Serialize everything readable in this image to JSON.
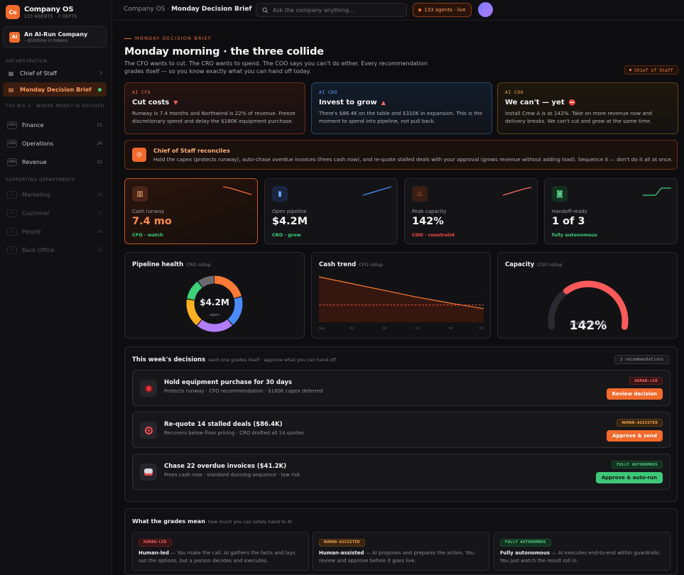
{
  "brand": {
    "logo_text": "Co",
    "name": "Company OS",
    "subtitle": "133 AGENTS · 7 DEPTS"
  },
  "company": {
    "logo_text": "AI",
    "name": "An AI-Run Company",
    "subtitle": "~$500/mo in tokens"
  },
  "sidebar": {
    "section_orchestration": "ORCHESTRATION",
    "chief_of_staff": {
      "label": "Chief of Staff",
      "count": "3"
    },
    "monday_brief": {
      "label": "Monday Decision Brief"
    },
    "section_big3": "THE BIG 3 · WHERE MONEY IS DECIDED",
    "big3": [
      {
        "tag": "CFO",
        "label": "Finance",
        "count": "21"
      },
      {
        "tag": "COO",
        "label": "Operations",
        "count": "24"
      },
      {
        "tag": "CRO",
        "label": "Revenue",
        "count": "22"
      }
    ],
    "section_support": "SUPPORTING DEPARTMENTS",
    "support": [
      {
        "tag": "S",
        "label": "Marketing",
        "count": "18"
      },
      {
        "tag": "S",
        "label": "Customer",
        "count": "17"
      },
      {
        "tag": "S",
        "label": "People",
        "count": "16"
      },
      {
        "tag": "S",
        "label": "Back Office",
        "count": "15"
      }
    ]
  },
  "topbar": {
    "crumb_root": "Company OS · ",
    "crumb_current": "Monday Decision Brief",
    "search_placeholder": "Ask the company anything...",
    "live_label": "133 agents · live"
  },
  "header": {
    "eyebrow": "MONDAY DECISION BRIEF",
    "title": "Monday morning · the three collide",
    "intro": "The CFO wants to cut. The CRO wants to spend. The COO says you can't do either. Every recommendation grades itself — so you know exactly what you can hand off today.",
    "cos_tag": "Chief of Staff"
  },
  "roles": [
    {
      "tag": "AI CFO",
      "title": "Cut costs",
      "mark": "▼",
      "body": "Runway is 7.4 months and Northwind is 22% of revenue. Freeze discretionary spend and delay the $180K equipment purchase."
    },
    {
      "tag": "AI CRO",
      "title": "Invest to grow",
      "mark": "▲",
      "body": "There's $86.4K on the table and $310K in expansion. This is the moment to spend into pipeline, not pull back."
    },
    {
      "tag": "AI COO",
      "title": "We can't — yet",
      "mark": "⛔",
      "body": "Install Crew A is at 142%. Take on more revenue now and delivery breaks. We can't cut and grow at the same time."
    }
  ],
  "reconcile": {
    "title": "Chief of Staff reconciles",
    "body": "Hold the capex (protects runway), auto-chase overdue invoices (frees cash now), and re-quote stalled deals with your approval (grows revenue without adding load). Sequence it — don't do it all at once."
  },
  "kpis": [
    {
      "icon": "bank-icon",
      "label": "Cash runway",
      "value": "7.4 mo",
      "sub": "CFO · watch",
      "color": "#3ed17a"
    },
    {
      "icon": "chart-icon",
      "label": "Open pipeline",
      "value": "$4.2M",
      "sub": "CRO · grow",
      "color": "#3ed17a"
    },
    {
      "icon": "flame-icon",
      "label": "Peak capacity",
      "value": "142%",
      "sub": "COO · constraint",
      "color": "#ff4a4a"
    },
    {
      "icon": "robot-icon",
      "label": "Handoff-ready",
      "value": "1 of 3",
      "sub": "fully autonomous",
      "color": "#3ed17a"
    }
  ],
  "pipeline": {
    "title": "Pipeline health",
    "subtitle": "CRO rollup",
    "center_value": "$4.2M",
    "center_label": "open",
    "segments": [
      {
        "value": 21,
        "color": "#ff7a35"
      },
      {
        "value": 18,
        "color": "#4a8cff"
      },
      {
        "value": 22,
        "color": "#b27cff"
      },
      {
        "value": 17,
        "color": "#ffb020"
      },
      {
        "value": 12,
        "color": "#3ed17a"
      },
      {
        "value": 10,
        "color": "#6a6a70"
      }
    ]
  },
  "cash": {
    "title": "Cash trend",
    "subtitle": "CFO rollup",
    "x_labels": [
      "Now",
      "M1",
      "M2",
      "M3",
      "M4",
      "M5"
    ],
    "values": [
      100,
      85,
      70,
      55,
      42,
      30
    ],
    "threshold": 38
  },
  "capacity": {
    "title": "Capacity",
    "subtitle": "COO rollup",
    "value": "142%",
    "label": "peak team load",
    "fraction": 0.68
  },
  "decisions": {
    "title": "This week's decisions",
    "subtitle": "each one grades itself · approve what you can hand off",
    "count": "3 recommendations",
    "items": [
      {
        "icon": "stop-icon",
        "title": "Hold equipment purchase for 30 days",
        "sub": "Protects runway · CFO recommendation · $180K capex deferred",
        "grade": "HUMAN-LED",
        "action": "Review decision"
      },
      {
        "icon": "target-icon",
        "title": "Re-quote 14 stalled deals ($86.4K)",
        "sub": "Recovers below-floor pricing · CRO drafted all 14 quotes",
        "grade": "HUMAN-ASSISTED",
        "action": "Approve & send"
      },
      {
        "icon": "robot-icon",
        "title": "Chase 22 overdue invoices ($41.2K)",
        "sub": "Frees cash now · standard dunning sequence · low risk",
        "grade": "FULLY AUTONOMOUS",
        "action": "Approve & auto-run"
      }
    ]
  },
  "grades": {
    "title": "What the grades mean",
    "subtitle": "how much you can safely hand to AI",
    "items": [
      {
        "badge": "HUMAN-LED",
        "name": "Human-led",
        "desc": " — You make the call. AI gathers the facts and lays out the options, but a person decides and executes."
      },
      {
        "badge": "HUMAN-ASSISTED",
        "name": "Human-assisted",
        "desc": " — AI proposes and prepares the action. You review and approve before it goes live."
      },
      {
        "badge": "FULLY AUTONOMOUS",
        "name": "Fully autonomous",
        "desc": " — AI executes end-to-end within guardrails. You just watch the result roll in."
      }
    ]
  }
}
